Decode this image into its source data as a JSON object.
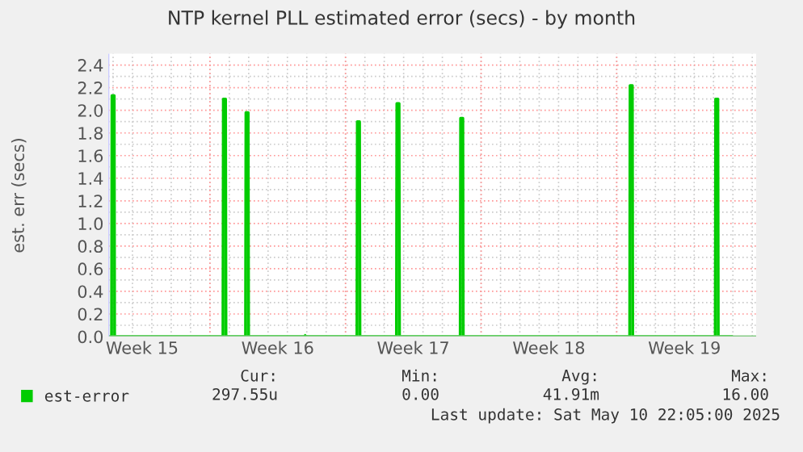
{
  "chart_data": {
    "type": "area",
    "title": "NTP kernel PLL estimated error (secs) - by month",
    "ylabel": "est. err (secs)",
    "series": [
      {
        "name": "est-error",
        "color": "#00cc00",
        "x": [
          "2025-04-08T18:00",
          "2025-04-08T22:00",
          "2025-04-08T22:30",
          "2025-04-09T01:30",
          "2025-04-09T02:00",
          "2025-04-14T16:00",
          "2025-04-14T16:30",
          "2025-04-14T19:30",
          "2025-04-14T20:00",
          "2025-04-15T20:00",
          "2025-04-15T20:30",
          "2025-04-15T23:30",
          "2025-04-16T00:00",
          "2025-04-18T21:00",
          "2025-04-18T22:00",
          "2025-04-18T23:00",
          "2025-04-21T14:00",
          "2025-04-21T14:30",
          "2025-04-21T17:30",
          "2025-04-21T18:00",
          "2025-04-23T15:00",
          "2025-04-23T15:30",
          "2025-04-23T18:30",
          "2025-04-23T19:00",
          "2025-04-26T22:00",
          "2025-04-26T22:30",
          "2025-04-27T01:30",
          "2025-04-27T02:00",
          "2025-05-05T16:00",
          "2025-05-05T16:30",
          "2025-05-05T19:30",
          "2025-05-05T20:00",
          "2025-05-10T02:00",
          "2025-05-10T02:30",
          "2025-05-10T05:30",
          "2025-05-10T06:00",
          "2025-05-10T22:05"
        ],
        "values": [
          0,
          0,
          2.13,
          2.13,
          0,
          0,
          2.1,
          2.1,
          0,
          0,
          1.98,
          1.98,
          0,
          0,
          0.01,
          0,
          0,
          1.9,
          1.9,
          0,
          0,
          2.06,
          2.06,
          0,
          0,
          1.93,
          1.93,
          0,
          0,
          2.22,
          2.22,
          0,
          0,
          2.1,
          2.1,
          0,
          0
        ]
      }
    ],
    "xlim": [
      "2025-04-08T18:00",
      "2025-05-12T04:48"
    ],
    "xticks": [
      {
        "value": "2025-04-10T12:00",
        "label": "Week 15"
      },
      {
        "value": "2025-04-14",
        "label": null
      },
      {
        "value": "2025-04-17T12:00",
        "label": "Week 16"
      },
      {
        "value": "2025-04-21",
        "label": null
      },
      {
        "value": "2025-04-24T12:00",
        "label": "Week 17"
      },
      {
        "value": "2025-04-28",
        "label": null
      },
      {
        "value": "2025-05-01T12:00",
        "label": "Week 18"
      },
      {
        "value": "2025-05-05",
        "label": null
      },
      {
        "value": "2025-05-08T12:00",
        "label": "Week 19"
      }
    ],
    "ylim": [
      0,
      2.5
    ],
    "yticks": [
      {
        "value": 0,
        "label": "0.0"
      },
      {
        "value": 0.2,
        "label": "0.2"
      },
      {
        "value": 0.4,
        "label": "0.4"
      },
      {
        "value": 0.6,
        "label": "0.6"
      },
      {
        "value": 0.8,
        "label": "0.8"
      },
      {
        "value": 1.0,
        "label": "1.0"
      },
      {
        "value": 1.2,
        "label": "1.2"
      },
      {
        "value": 1.4,
        "label": "1.4"
      },
      {
        "value": 1.6,
        "label": "1.6"
      },
      {
        "value": 1.8,
        "label": "1.8"
      },
      {
        "value": 2.0,
        "label": "2.0"
      },
      {
        "value": 2.2,
        "label": "2.2"
      },
      {
        "value": 2.4,
        "label": "2.4"
      }
    ],
    "grid": true,
    "legend": "bottom",
    "annotations": [
      "Cur:",
      "Min:",
      "Avg:",
      "Max:",
      "297.55u",
      "0.00",
      "41.91m",
      "16.00",
      "Last update: Sat May 10 22:05:00 2025"
    ]
  }
}
